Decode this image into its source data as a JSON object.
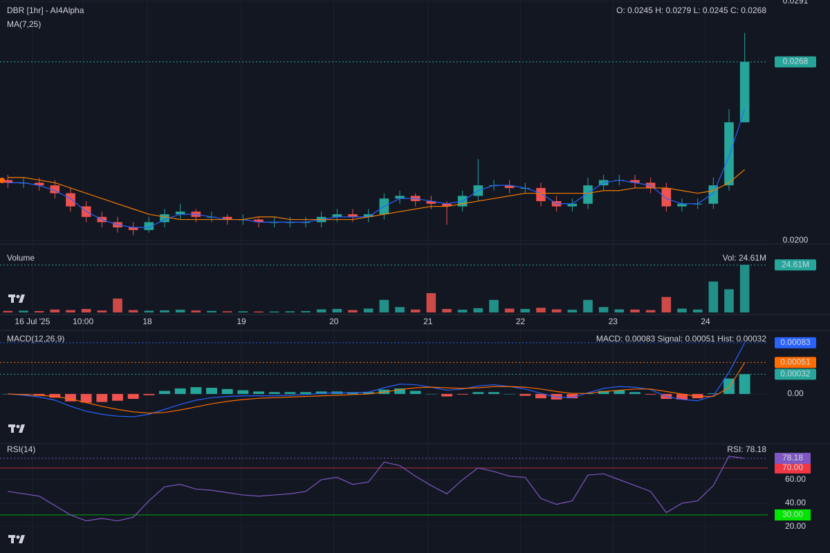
{
  "chart_data": [
    {
      "type": "candlestick",
      "title": "DBR [1hr] - AI4Alpha",
      "indicator": "MA(7,25)",
      "ohlc_text": "O: 0.0245 H: 0.0279 L: 0.0245 C: 0.0268",
      "xlim": [
        0,
        48
      ],
      "ylim": [
        0.02,
        0.0291
      ],
      "yticks": [
        {
          "value": 0.02,
          "label": "0.0200"
        },
        {
          "value": 0.0291,
          "label": "0.0291"
        }
      ],
      "up_color": "#26a69a",
      "down_color": "#ef5350",
      "open": [
        0.0223,
        0.0222,
        0.0222,
        0.0221,
        0.0218,
        0.0213,
        0.0209,
        0.0207,
        0.0205,
        0.0204,
        0.0207,
        0.021,
        0.0211,
        0.0209,
        0.0209,
        0.0208,
        0.0208,
        0.0207,
        0.0207,
        0.0207,
        0.0207,
        0.0209,
        0.021,
        0.0209,
        0.021,
        0.0216,
        0.0217,
        0.0215,
        0.0214,
        0.0213,
        0.0217,
        0.0221,
        0.0221,
        0.022,
        0.022,
        0.0215,
        0.0213,
        0.0214,
        0.0221,
        0.0223,
        0.0223,
        0.0222,
        0.022,
        0.0213,
        0.0214,
        0.0214,
        0.0221,
        0.0245
      ],
      "high": [
        0.0225,
        0.0224,
        0.0224,
        0.0223,
        0.022,
        0.0215,
        0.0211,
        0.0209,
        0.0207,
        0.0209,
        0.0212,
        0.0214,
        0.0212,
        0.0211,
        0.021,
        0.021,
        0.0209,
        0.0209,
        0.0209,
        0.0209,
        0.0211,
        0.0212,
        0.0212,
        0.0212,
        0.0218,
        0.0219,
        0.0218,
        0.0217,
        0.0215,
        0.0219,
        0.0231,
        0.0223,
        0.0223,
        0.0222,
        0.0222,
        0.0217,
        0.0216,
        0.0224,
        0.0225,
        0.0225,
        0.0225,
        0.0224,
        0.0222,
        0.0216,
        0.0216,
        0.0224,
        0.025,
        0.0279
      ],
      "low": [
        0.022,
        0.022,
        0.0219,
        0.0216,
        0.0211,
        0.0207,
        0.0205,
        0.0203,
        0.0202,
        0.0203,
        0.0205,
        0.0208,
        0.0207,
        0.0207,
        0.0206,
        0.0206,
        0.0205,
        0.0205,
        0.0205,
        0.0205,
        0.0205,
        0.0207,
        0.0207,
        0.0207,
        0.0208,
        0.0214,
        0.0213,
        0.0212,
        0.0206,
        0.0211,
        0.0215,
        0.0219,
        0.0218,
        0.0218,
        0.0213,
        0.0211,
        0.0211,
        0.0212,
        0.0219,
        0.0221,
        0.022,
        0.0218,
        0.0211,
        0.0211,
        0.0212,
        0.0212,
        0.0219,
        0.0245
      ],
      "close": [
        0.0222,
        0.0222,
        0.0221,
        0.0218,
        0.0213,
        0.0209,
        0.0207,
        0.0205,
        0.0204,
        0.0207,
        0.021,
        0.0211,
        0.0209,
        0.0209,
        0.0208,
        0.0208,
        0.0207,
        0.0207,
        0.0207,
        0.0207,
        0.0209,
        0.021,
        0.0209,
        0.021,
        0.0216,
        0.0217,
        0.0215,
        0.0214,
        0.0213,
        0.0217,
        0.0221,
        0.0221,
        0.022,
        0.022,
        0.0215,
        0.0213,
        0.0214,
        0.0221,
        0.0223,
        0.0223,
        0.0222,
        0.022,
        0.0213,
        0.0214,
        0.0214,
        0.0221,
        0.0245,
        0.0268
      ],
      "last_label": "0.0268",
      "lines": [
        {
          "color": "#2962ff",
          "values": [
            0.0222,
            0.0222,
            0.0221,
            0.0219,
            0.0216,
            0.0211,
            0.0208,
            0.0206,
            0.0205,
            0.0205,
            0.0208,
            0.021,
            0.021,
            0.0209,
            0.0208,
            0.0208,
            0.0207,
            0.0207,
            0.0207,
            0.0207,
            0.0208,
            0.0209,
            0.0209,
            0.0209,
            0.0213,
            0.0216,
            0.0216,
            0.0215,
            0.0214,
            0.0215,
            0.0219,
            0.0221,
            0.0221,
            0.022,
            0.0218,
            0.0214,
            0.0214,
            0.0218,
            0.0222,
            0.0223,
            0.0222,
            0.0221,
            0.0216,
            0.0214,
            0.0214,
            0.0218,
            0.0232,
            0.025
          ]
        },
        {
          "color": "#f57c00",
          "values": [
            0.0224,
            0.0224,
            0.0223,
            0.0222,
            0.022,
            0.0218,
            0.0216,
            0.0214,
            0.0212,
            0.021,
            0.0209,
            0.0208,
            0.0208,
            0.0208,
            0.0208,
            0.0208,
            0.0209,
            0.0209,
            0.0208,
            0.0208,
            0.0208,
            0.0208,
            0.0208,
            0.0209,
            0.021,
            0.0211,
            0.0212,
            0.0213,
            0.0213,
            0.0214,
            0.0215,
            0.0216,
            0.0217,
            0.0218,
            0.0218,
            0.0218,
            0.0218,
            0.0218,
            0.0219,
            0.0219,
            0.022,
            0.022,
            0.022,
            0.0219,
            0.0218,
            0.0219,
            0.0222,
            0.0227
          ]
        }
      ]
    },
    {
      "type": "bar",
      "title": "Volume",
      "status": "Vol: 24.61M",
      "ylim": [
        0,
        34
      ],
      "values": [
        0.8,
        0.9,
        0.7,
        1.5,
        1.2,
        1.8,
        1.0,
        7.2,
        1.2,
        0.9,
        1.1,
        1.4,
        1.0,
        0.8,
        0.6,
        0.6,
        0.5,
        0.5,
        0.6,
        0.7,
        1.6,
        1.8,
        1.2,
        2.0,
        6.5,
        2.8,
        1.5,
        10.0,
        1.8,
        1.4,
        2.2,
        6.5,
        2.0,
        1.8,
        2.4,
        1.6,
        1.4,
        6.5,
        2.8,
        1.6,
        1.5,
        1.2,
        8.0,
        2.0,
        1.5,
        16.0,
        12.0,
        24.61
      ],
      "last_label": "24.61M",
      "xticks": [
        {
          "value": 2.07,
          "label": "16 Jul '25"
        },
        {
          "value": 5.3,
          "label": "10:00"
        },
        {
          "value": 9.4,
          "label": "18"
        },
        {
          "value": 15.4,
          "label": "19"
        },
        {
          "value": 21.3,
          "label": "20"
        },
        {
          "value": 27.3,
          "label": "21"
        },
        {
          "value": 33.2,
          "label": "22"
        },
        {
          "value": 39.1,
          "label": "23"
        },
        {
          "value": 45.0,
          "label": "24"
        }
      ]
    },
    {
      "type": "macd",
      "title": "MACD(12,26,9)",
      "status": "MACD: 0.00083 Signal: 0.00051 Hist: 0.00032",
      "ylim": [
        -0.000785,
        0.00103
      ],
      "yticks": [
        {
          "value": 0,
          "label": "0.00"
        }
      ],
      "series": [
        {
          "color": "#2962ff",
          "values": [
            0,
            -2e-05,
            -5e-05,
            -0.0001,
            -0.0002,
            -0.00028,
            -0.00033,
            -0.00036,
            -0.00037,
            -0.00033,
            -0.00025,
            -0.00017,
            -0.0001,
            -6e-05,
            -4e-05,
            -3e-05,
            -3e-05,
            -3e-05,
            -2e-05,
            -1e-05,
            1e-05,
            2e-05,
            2e-05,
            3e-05,
            0.0001,
            0.00016,
            0.00015,
            0.00011,
            6e-05,
            8e-05,
            0.00013,
            0.00015,
            0.00012,
            8e-05,
            1e-05,
            -5e-05,
            -6e-05,
            2e-05,
            9e-05,
            0.00012,
            0.00011,
            7e-05,
            -4e-05,
            -9e-05,
            -0.00011,
            -3e-05,
            0.00035,
            0.00083
          ]
        },
        {
          "color": "#ff6d00",
          "values": [
            0,
            -1e-05,
            -2e-05,
            -4e-05,
            -8e-05,
            -0.00014,
            -0.0002,
            -0.00025,
            -0.00029,
            -0.00031,
            -0.0003,
            -0.00026,
            -0.00021,
            -0.00016,
            -0.00012,
            -9e-05,
            -7e-05,
            -6e-05,
            -5e-05,
            -4e-05,
            -3e-05,
            -2e-05,
            -1e-05,
            0,
            3e-05,
            7e-05,
            0.0001,
            0.00011,
            0.0001,
            9e-05,
            0.0001,
            0.00012,
            0.00012,
            0.00011,
            8e-05,
            4e-05,
            1e-05,
            1e-05,
            4e-05,
            6e-05,
            8e-05,
            8e-05,
            4e-05,
            0,
            -4e-05,
            -4e-05,
            0.0001,
            0.00051
          ]
        },
        {
          "color": "#26a69a",
          "values": [
            0,
            -1e-05,
            -3e-05,
            -6e-05,
            -0.00012,
            -0.00014,
            -0.00013,
            -0.00011,
            -8e-05,
            -2e-05,
            5e-05,
            9e-05,
            0.00011,
            0.0001,
            8e-05,
            6e-05,
            4e-05,
            3e-05,
            3e-05,
            3e-05,
            4e-05,
            4e-05,
            3e-05,
            3e-05,
            7e-05,
            9e-05,
            5e-05,
            0,
            -4e-05,
            -1e-05,
            3e-05,
            3e-05,
            0,
            -3e-05,
            -7e-05,
            -9e-05,
            -7e-05,
            1e-05,
            5e-05,
            6e-05,
            3e-05,
            -1e-05,
            -8e-05,
            -9e-05,
            -7e-05,
            1e-05,
            0.00025,
            0.00032
          ]
        }
      ],
      "tag_labels": [
        "0.00083",
        "0.00051",
        "0.00032"
      ]
    },
    {
      "type": "rsi",
      "title": "RSI(14)",
      "status": "RSI: 78.18",
      "ylim": [
        -2.4,
        88.8
      ],
      "color": "#7e57c2",
      "yticks": [
        {
          "value": 20,
          "label": "20.00"
        },
        {
          "value": 40,
          "label": "40.00"
        },
        {
          "value": 60,
          "label": "60.00"
        }
      ],
      "levels": [
        {
          "value": 70,
          "label": "70.00",
          "color": "#f23645"
        },
        {
          "value": 30,
          "label": "30.00",
          "color": "#00e600"
        }
      ],
      "values": [
        50,
        48,
        46,
        38,
        30,
        25,
        27,
        25,
        28,
        42,
        54,
        56,
        52,
        51,
        49,
        47,
        46,
        47,
        48,
        50,
        60,
        62,
        56,
        58,
        75,
        72,
        63,
        55,
        48,
        60,
        70,
        67,
        63,
        62,
        44,
        39,
        42,
        64,
        65,
        60,
        55,
        50,
        32,
        40,
        42,
        55,
        80,
        78.18
      ],
      "last_label": "78.18"
    }
  ]
}
